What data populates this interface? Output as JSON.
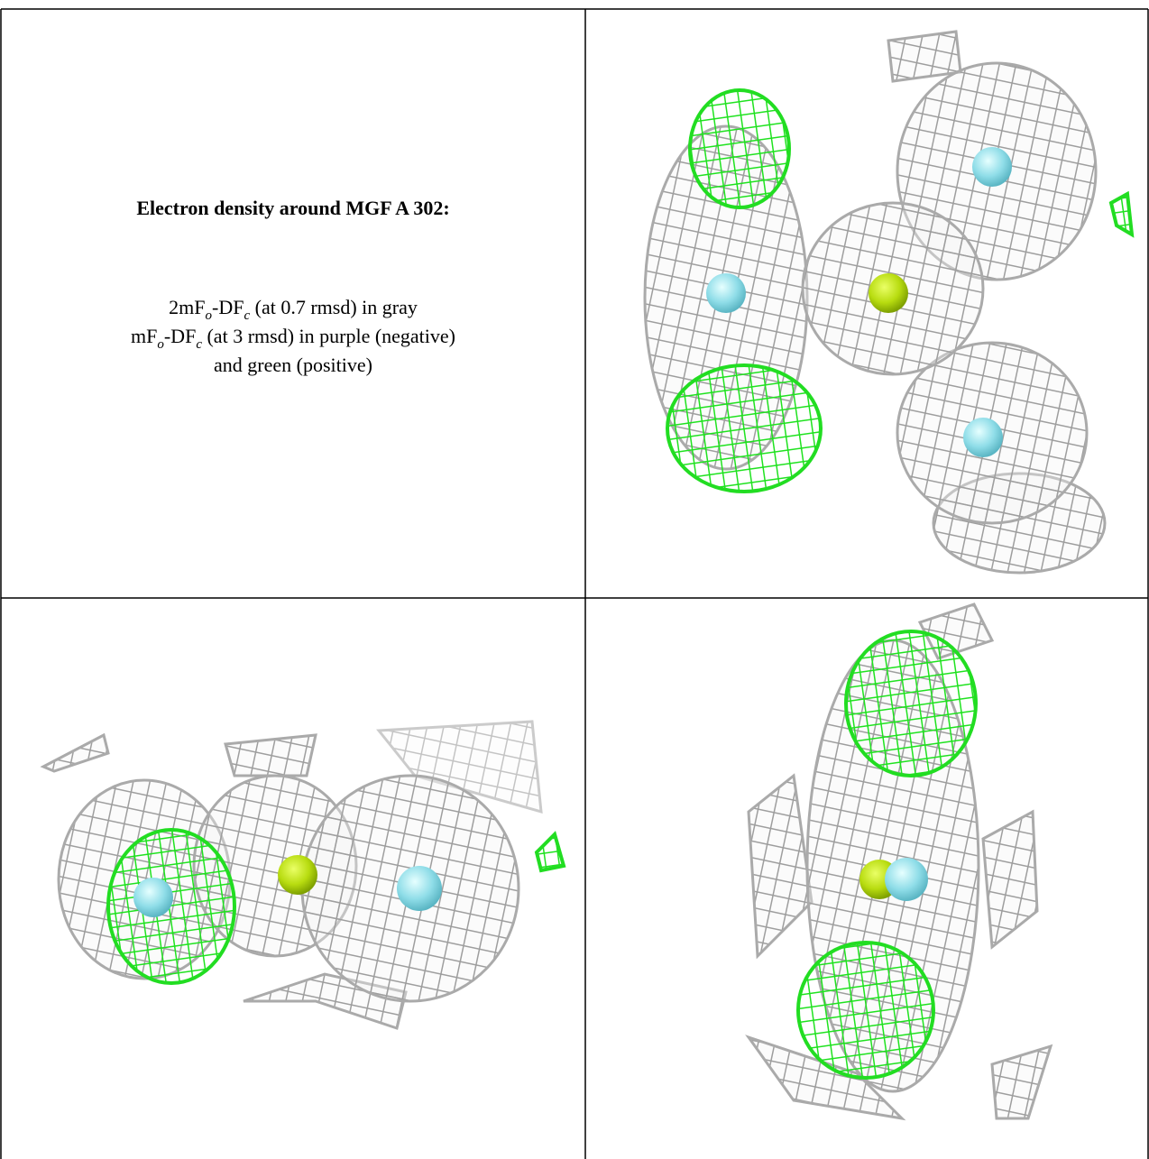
{
  "caption": {
    "title": "Electron density around MGF A 302:",
    "lines": [
      [
        "2mF",
        "o",
        "-DF",
        "c",
        " (at 0.7 rmsd) in gray"
      ],
      [
        "mF",
        "o",
        "-DF",
        "c",
        " (at 3 rmsd) in purple (negative)"
      ],
      [
        "and green (positive)"
      ]
    ]
  }
}
